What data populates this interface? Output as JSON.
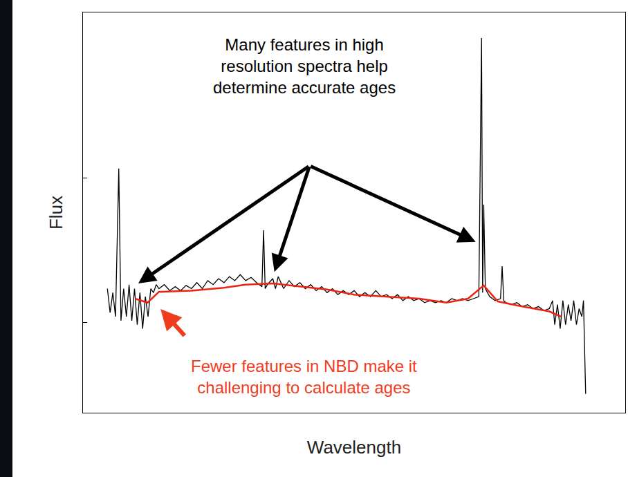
{
  "chart_data": {
    "type": "line",
    "xlabel": "Wavelength",
    "ylabel": "Flux",
    "xlim": [
      0,
      100
    ],
    "ylim": [
      0,
      100
    ],
    "yticks": [
      22.5,
      58.7
    ],
    "tick_labels": false,
    "grid": false,
    "series": [
      {
        "color": "#000000",
        "x": [
          4.5,
          5,
          5.5,
          6,
          6.6,
          7,
          7.5,
          8,
          8.5,
          9,
          9.5,
          10,
          10.5,
          11,
          11.5,
          12,
          12.5,
          13,
          13.5,
          14,
          15,
          16,
          17,
          18,
          19,
          20,
          21,
          22,
          23,
          24,
          25,
          26,
          27,
          28,
          29,
          30,
          31,
          32,
          33,
          33.3,
          33.6,
          34,
          35,
          35.5,
          36,
          37,
          38,
          39,
          40,
          41,
          42,
          43,
          44,
          45,
          46,
          47,
          48,
          49,
          50,
          51,
          52,
          53,
          54,
          55,
          56,
          57,
          58,
          59,
          60,
          61,
          62,
          63,
          64,
          65,
          66,
          67,
          68,
          69,
          70,
          71,
          72,
          73,
          73.5,
          73.7,
          73.9,
          74.2,
          75,
          76,
          77,
          77.3,
          77.6,
          78,
          79,
          80,
          81,
          82,
          83,
          84,
          85,
          86,
          86.6,
          87,
          87.5,
          88,
          88.5,
          89,
          89.5,
          90,
          90.5,
          91,
          91.5,
          92,
          92.3,
          92.7
        ],
        "values": [
          31,
          25,
          30,
          24,
          61,
          23,
          31,
          24,
          32,
          23,
          31,
          22,
          30,
          21,
          29,
          24,
          31,
          30,
          32,
          31,
          32,
          30.5,
          31.5,
          30.5,
          31.8,
          31,
          32.5,
          31,
          33,
          32,
          33.5,
          32.5,
          34,
          33,
          34.5,
          33,
          33.8,
          32.5,
          31.5,
          45.6,
          31,
          32,
          33.5,
          31,
          34,
          31,
          33,
          31.5,
          32.5,
          31,
          32,
          30.5,
          31.5,
          30,
          31,
          29.5,
          30.5,
          29.5,
          30.5,
          29,
          30,
          29,
          30.5,
          29,
          29.5,
          28.5,
          29.5,
          28,
          29,
          28,
          28.5,
          27.5,
          28,
          27.5,
          28,
          27.5,
          28.5,
          28,
          28.5,
          28,
          28.5,
          29,
          93.6,
          30,
          52,
          31,
          29,
          28,
          28.5,
          36.6,
          28,
          27.5,
          27,
          27.5,
          26.5,
          27,
          26,
          26.5,
          25.5,
          26,
          28,
          22,
          27,
          21,
          28,
          22,
          27,
          23,
          28,
          22,
          26,
          24,
          28,
          4.7
        ]
      },
      {
        "color": "#ee2211",
        "x": [
          9.6,
          11.9,
          14.0,
          20,
          26,
          30,
          35,
          40,
          45,
          50,
          56,
          62,
          67,
          71,
          73.9,
          76.5,
          80,
          86,
          88.2
        ],
        "values": [
          28.5,
          27.5,
          30.2,
          30.5,
          31.2,
          32,
          32.3,
          31.5,
          30.8,
          29.5,
          29,
          28.5,
          27.5,
          28.5,
          31.8,
          27.8,
          26.8,
          25.3,
          24
        ]
      }
    ],
    "annotations": [
      {
        "text": "Many features in high resolution spectra help determine accurate ages",
        "color": "#000000"
      },
      {
        "text": "Fewer features in NBD make it challenging to calculate ages",
        "color": "#f03c1e"
      }
    ]
  }
}
